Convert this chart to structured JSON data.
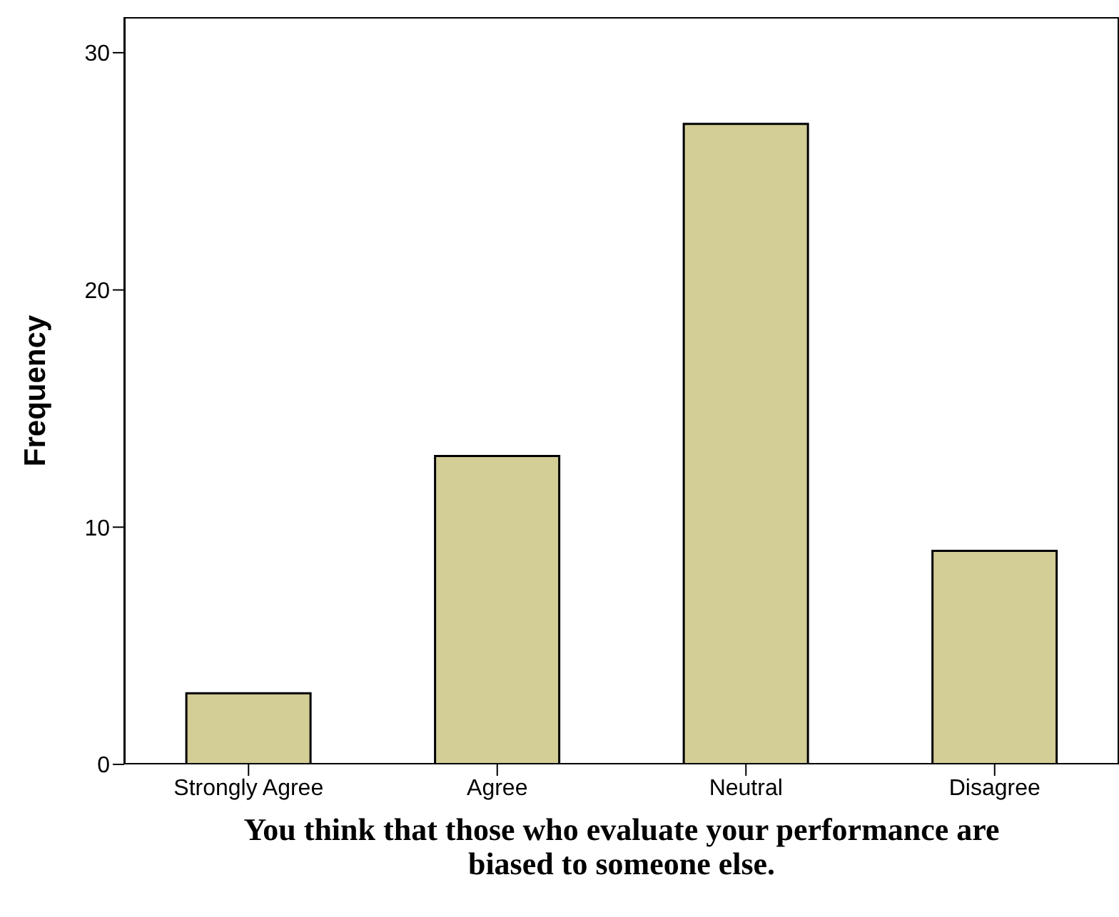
{
  "chart_data": {
    "type": "bar",
    "xlabel": "You think that those who evaluate your performance are biased to someone else.",
    "ylabel": "Frequency",
    "categories": [
      "Strongly Agree",
      "Agree",
      "Neutral",
      "Disagree"
    ],
    "values": [
      3,
      13,
      27,
      9
    ],
    "color": "#d3cd96",
    "ylim": [
      0,
      31.5
    ],
    "yticks": [
      0,
      10,
      20,
      30
    ],
    "grid": false,
    "legend": false
  }
}
